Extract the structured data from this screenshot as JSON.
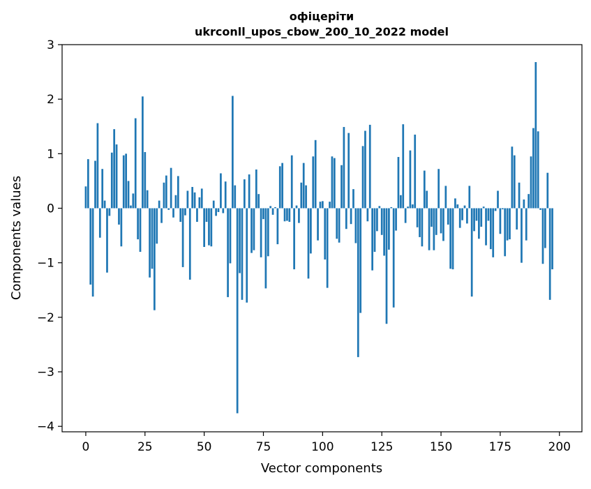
{
  "chart_data": {
    "type": "bar",
    "title_line1": "офіцеріти",
    "title_line2": "ukrconll_upos_cbow_200_10_2022 model",
    "xlabel": "Vector components",
    "ylabel": "Components values",
    "xlim": [
      -10,
      209.5
    ],
    "ylim": [
      -4.1,
      3.0
    ],
    "xticks": [
      0,
      25,
      50,
      75,
      100,
      125,
      150,
      175,
      200
    ],
    "yticks": [
      -4,
      -3,
      -2,
      -1,
      0,
      1,
      2,
      3
    ],
    "ytick_labels": [
      "−4",
      "−3",
      "−2",
      "−1",
      "0",
      "1",
      "2",
      "3"
    ],
    "bar_color": "#1f77b4",
    "values": [
      0.4,
      0.9,
      -1.4,
      -1.62,
      0.87,
      1.56,
      -0.54,
      0.72,
      0.14,
      -1.18,
      -0.14,
      1.02,
      1.45,
      1.17,
      -0.3,
      -0.7,
      0.97,
      1.0,
      0.5,
      0.05,
      0.27,
      1.65,
      -0.57,
      -0.8,
      2.05,
      1.03,
      0.33,
      -1.27,
      -1.11,
      -1.87,
      -0.65,
      0.14,
      -0.27,
      0.47,
      0.6,
      -0.03,
      0.74,
      -0.17,
      0.24,
      0.59,
      -0.25,
      -1.08,
      -0.13,
      0.32,
      -1.31,
      0.39,
      0.29,
      -0.25,
      0.2,
      0.36,
      -0.71,
      -0.25,
      -0.68,
      -0.7,
      0.14,
      -0.14,
      -0.07,
      0.64,
      -0.09,
      0.49,
      -1.63,
      -1.01,
      2.06,
      0.42,
      -3.76,
      -1.19,
      -1.68,
      0.53,
      -1.73,
      0.62,
      -0.82,
      -0.77,
      0.71,
      0.26,
      -0.9,
      -0.2,
      -1.47,
      -0.88,
      0.04,
      -0.12,
      0.02,
      -0.66,
      0.77,
      0.83,
      -0.24,
      -0.23,
      -0.25,
      0.97,
      -1.12,
      0.05,
      -0.27,
      0.47,
      0.83,
      0.42,
      -1.29,
      -0.83,
      0.95,
      1.25,
      -0.59,
      0.12,
      0.13,
      -0.94,
      -1.46,
      0.12,
      0.95,
      0.92,
      -0.56,
      -0.63,
      0.79,
      1.49,
      -0.38,
      1.38,
      -0.29,
      0.35,
      -0.64,
      -2.73,
      -1.92,
      1.14,
      1.42,
      -0.24,
      1.53,
      -1.14,
      -0.8,
      -0.42,
      0.04,
      -0.49,
      -0.87,
      -2.12,
      -0.76,
      0.02,
      -1.82,
      -0.41,
      0.94,
      0.24,
      1.54,
      -0.27,
      0.03,
      1.06,
      0.07,
      1.35,
      -0.35,
      -0.53,
      -0.7,
      0.69,
      0.32,
      -0.77,
      -0.34,
      -0.77,
      -0.49,
      0.72,
      -0.46,
      -0.6,
      0.41,
      -0.3,
      -1.11,
      -1.12,
      0.18,
      0.07,
      -0.36,
      -0.22,
      0.05,
      -0.28,
      0.41,
      -1.62,
      -0.42,
      -0.23,
      -0.56,
      -0.34,
      0.03,
      -0.68,
      -0.23,
      -0.75,
      -0.9,
      -0.05,
      0.32,
      -0.47,
      -0.02,
      -0.88,
      -0.59,
      -0.57,
      1.13,
      0.97,
      -0.39,
      0.47,
      -1.0,
      0.16,
      -0.59,
      0.26,
      0.95,
      1.47,
      2.68,
      1.41,
      -0.03,
      -1.02,
      -0.73,
      0.65,
      -1.68,
      -1.12
    ]
  }
}
